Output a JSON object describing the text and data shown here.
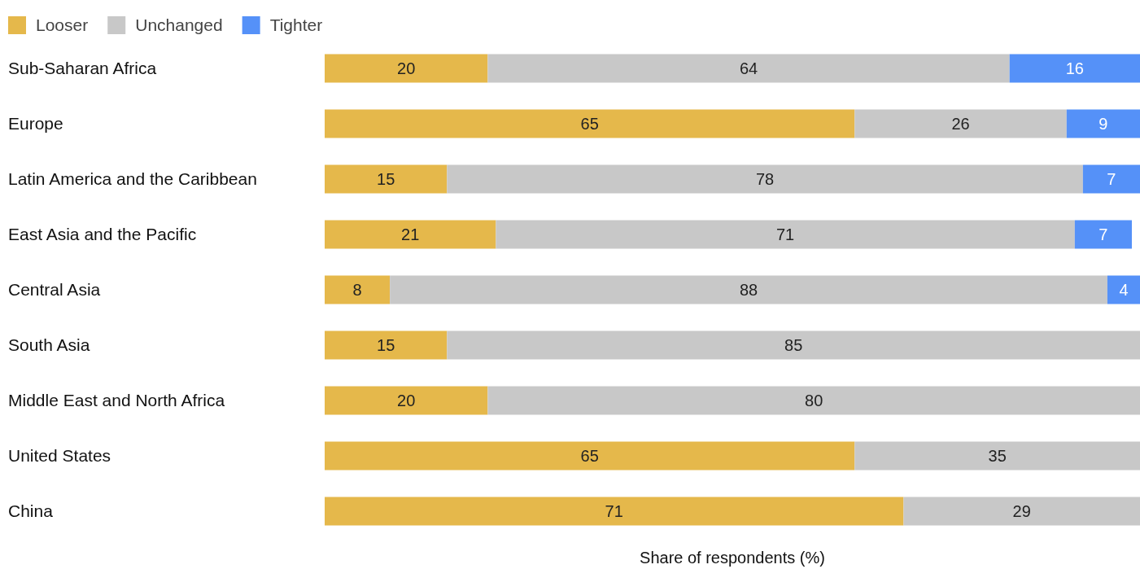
{
  "chart_data": {
    "type": "bar",
    "orientation": "horizontal",
    "stacked": true,
    "data_labels": true,
    "legend": "top left",
    "xlabel": "Share of respondents (%)",
    "categories": [
      "Sub-Saharan Africa",
      "Europe",
      "Latin America and the Caribbean",
      "East Asia and the Pacific",
      "Central Asia",
      "South Asia",
      "Middle East and North Africa",
      "United States",
      "China"
    ],
    "series": [
      {
        "name": "Looser",
        "color": "#e5b84b",
        "values": [
          20,
          65,
          15,
          21,
          8,
          15,
          20,
          65,
          71
        ]
      },
      {
        "name": "Unchanged",
        "color": "#c8c8c8",
        "values": [
          64,
          26,
          78,
          71,
          88,
          85,
          80,
          35,
          29
        ]
      },
      {
        "name": "Tighter",
        "color": "#5591f8",
        "values": [
          16,
          9,
          7,
          7,
          4,
          null,
          null,
          null,
          null
        ]
      }
    ]
  }
}
